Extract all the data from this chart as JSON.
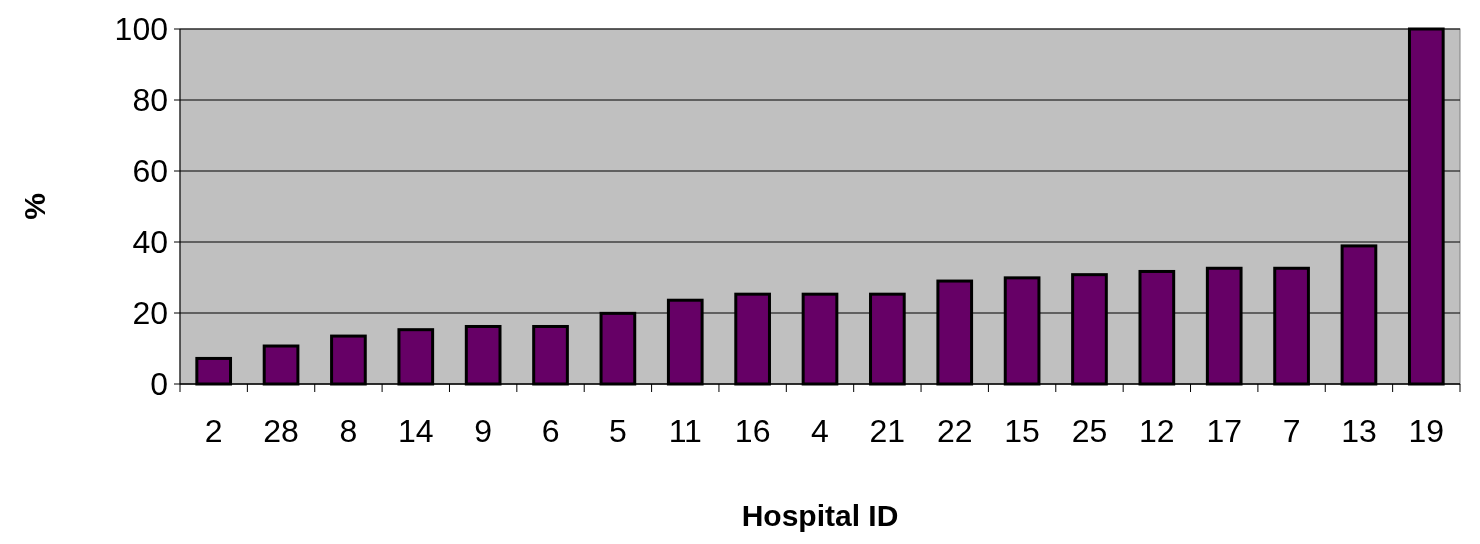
{
  "chart_data": {
    "type": "bar",
    "xlabel": "Hospital ID",
    "ylabel": "%",
    "categories": [
      "2",
      "28",
      "8",
      "14",
      "9",
      "6",
      "5",
      "11",
      "16",
      "4",
      "21",
      "22",
      "15",
      "25",
      "12",
      "17",
      "7",
      "13",
      "19"
    ],
    "values": [
      7.2,
      10.7,
      13.5,
      15.3,
      16.2,
      16.2,
      19.9,
      23.6,
      25.3,
      25.3,
      25.3,
      29.0,
      29.9,
      30.8,
      31.7,
      32.6,
      32.6,
      38.9,
      100
    ],
    "color": "#660066",
    "ylim": [
      0,
      100
    ],
    "yticks": [
      0,
      20,
      40,
      60,
      80,
      100
    ],
    "grid": "y"
  }
}
